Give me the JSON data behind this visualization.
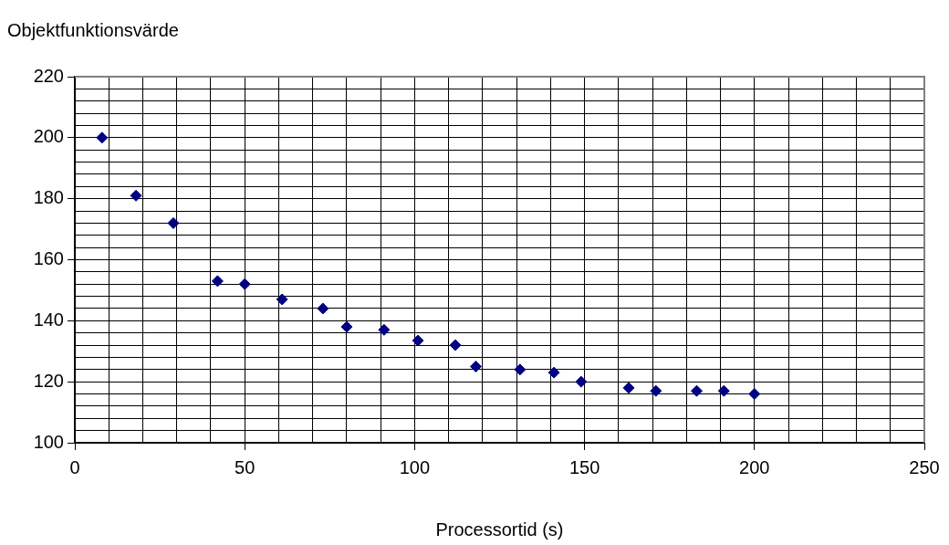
{
  "chart_data": {
    "type": "scatter",
    "ylabel": "Objektfunktionsvärde",
    "xlabel": "Processortid (s)",
    "x": [
      8,
      18,
      29,
      42,
      50,
      61,
      73,
      80,
      91,
      101,
      112,
      118,
      131,
      141,
      149,
      163,
      171,
      183,
      191,
      200
    ],
    "series": [
      {
        "color": "#000080",
        "values": [
          200,
          181,
          172,
          153,
          152,
          147,
          144,
          138,
          137,
          133.5,
          132,
          125,
          124,
          123,
          120,
          118,
          117,
          117,
          117,
          116
        ]
      }
    ],
    "xlim": [
      0,
      250
    ],
    "xticks": [
      0,
      {
        "value": 10,
        "label": null
      },
      {
        "value": 20,
        "label": null
      },
      {
        "value": 30,
        "label": null
      },
      {
        "value": 40,
        "label": null
      },
      50,
      {
        "value": 60,
        "label": null
      },
      {
        "value": 70,
        "label": null
      },
      {
        "value": 80,
        "label": null
      },
      {
        "value": 90,
        "label": null
      },
      100,
      {
        "value": 110,
        "label": null
      },
      {
        "value": 120,
        "label": null
      },
      {
        "value": 130,
        "label": null
      },
      {
        "value": 140,
        "label": null
      },
      150,
      {
        "value": 160,
        "label": null
      },
      {
        "value": 170,
        "label": null
      },
      {
        "value": 180,
        "label": null
      },
      {
        "value": 190,
        "label": null
      },
      200,
      {
        "value": 210,
        "label": null
      },
      {
        "value": 220,
        "label": null
      },
      {
        "value": 230,
        "label": null
      },
      {
        "value": 240,
        "label": null
      },
      250
    ],
    "ylim": [
      100,
      220
    ],
    "yticks": [
      100,
      {
        "value": 104,
        "label": null
      },
      {
        "value": 108,
        "label": null
      },
      {
        "value": 112,
        "label": null
      },
      {
        "value": 116,
        "label": null
      },
      120,
      {
        "value": 124,
        "label": null
      },
      {
        "value": 128,
        "label": null
      },
      {
        "value": 132,
        "label": null
      },
      {
        "value": 136,
        "label": null
      },
      140,
      {
        "value": 144,
        "label": null
      },
      {
        "value": 148,
        "label": null
      },
      {
        "value": 152,
        "label": null
      },
      {
        "value": 156,
        "label": null
      },
      160,
      {
        "value": 164,
        "label": null
      },
      {
        "value": 168,
        "label": null
      },
      {
        "value": 172,
        "label": null
      },
      {
        "value": 176,
        "label": null
      },
      180,
      {
        "value": 184,
        "label": null
      },
      {
        "value": 188,
        "label": null
      },
      {
        "value": 192,
        "label": null
      },
      {
        "value": 196,
        "label": null
      },
      200,
      {
        "value": 204,
        "label": null
      },
      {
        "value": 208,
        "label": null
      },
      {
        "value": 212,
        "label": null
      },
      {
        "value": 216,
        "label": null
      },
      220
    ],
    "grid": true,
    "legend": false,
    "marker": "diamond"
  }
}
